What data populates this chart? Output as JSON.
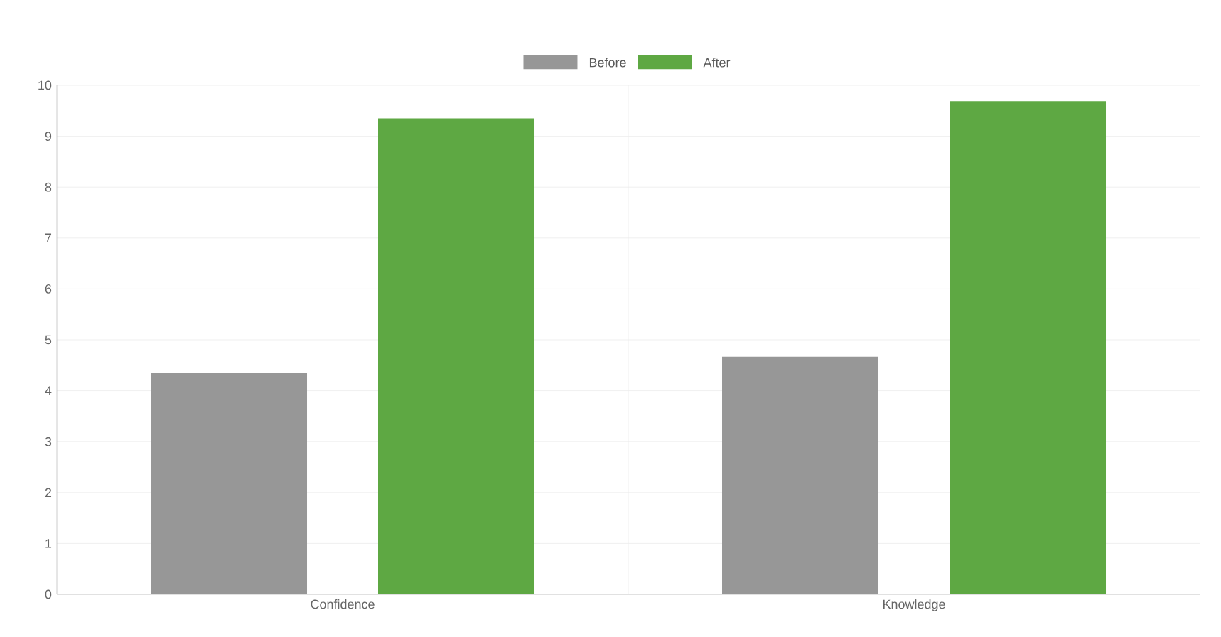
{
  "chart_data": {
    "type": "bar",
    "categories": [
      "Confidence",
      "Knowledge"
    ],
    "series": [
      {
        "name": "Before",
        "color": "#979797",
        "values": [
          4.35,
          4.67
        ]
      },
      {
        "name": "After",
        "color": "#5ea843",
        "values": [
          9.35,
          9.69
        ]
      }
    ],
    "ylim": [
      0,
      10
    ],
    "yticks": [
      0,
      1,
      2,
      3,
      4,
      5,
      6,
      7,
      8,
      9,
      10
    ],
    "grid": true,
    "legend": "top"
  }
}
